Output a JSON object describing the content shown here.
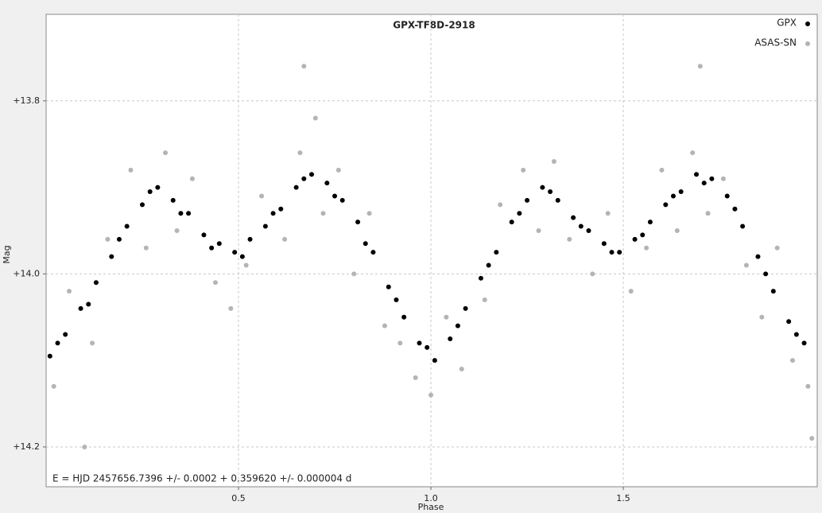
{
  "chart_data": {
    "type": "scatter",
    "title": "GPX-TF8D-2918",
    "x_label": "Phase",
    "y_label": "Mag",
    "annotation": "E = HJD 2457656.7396 +/- 0.0002 + 0.359620 +/- 0.000004 d",
    "xlim": [
      0,
      2.004
    ],
    "ylim": [
      14.246,
      13.7
    ],
    "xticks": [
      0.5,
      {
        "value": 1,
        "label": "1.0"
      },
      1.5
    ],
    "yticks": [
      {
        "value": 13.8,
        "label": "+13.8"
      },
      {
        "value": 14.0,
        "label": "+14.0"
      },
      {
        "value": 14.2,
        "label": "+14.2"
      }
    ],
    "grid": true,
    "legend": "top-right",
    "series": [
      {
        "name": "ASAS-SN",
        "color": "#b4b4b4",
        "x": [
          0.02,
          0.06,
          0.12,
          0.16,
          0.22,
          0.26,
          0.31,
          0.34,
          0.38,
          0.44,
          0.48,
          0.52,
          0.56,
          0.62,
          0.66,
          0.7,
          0.72,
          0.76,
          0.8,
          0.84,
          0.88,
          0.92,
          0.96,
          1.0,
          1.04,
          1.08,
          1.14,
          1.18,
          1.24,
          1.28,
          1.32,
          1.36,
          1.42,
          1.46,
          1.52,
          1.56,
          1.6,
          1.64,
          1.68,
          1.72,
          1.76,
          1.82,
          1.86,
          1.9,
          1.94,
          1.98,
          0.67,
          1.7,
          0.1,
          1.99
        ],
        "values": [
          14.13,
          14.02,
          14.08,
          13.96,
          13.88,
          13.97,
          13.86,
          13.95,
          13.89,
          14.01,
          14.04,
          13.99,
          13.91,
          13.96,
          13.86,
          13.82,
          13.93,
          13.88,
          14.0,
          13.93,
          14.06,
          14.08,
          14.12,
          14.14,
          14.05,
          14.11,
          14.03,
          13.92,
          13.88,
          13.95,
          13.87,
          13.96,
          14.0,
          13.93,
          14.02,
          13.97,
          13.88,
          13.95,
          13.86,
          13.93,
          13.89,
          13.99,
          14.05,
          13.97,
          14.1,
          14.13,
          13.76,
          13.76,
          14.2,
          14.19
        ]
      },
      {
        "name": "GPX",
        "color": "#000000",
        "x": [
          0.01,
          0.05,
          0.09,
          0.13,
          0.17,
          0.21,
          0.25,
          0.29,
          0.33,
          0.37,
          0.41,
          0.45,
          0.49,
          0.53,
          0.57,
          0.61,
          0.65,
          0.69,
          0.73,
          0.77,
          0.81,
          0.85,
          0.89,
          0.93,
          0.97,
          1.01,
          1.05,
          1.09,
          1.13,
          1.17,
          1.21,
          1.25,
          1.29,
          1.33,
          1.37,
          1.41,
          1.45,
          1.49,
          1.53,
          1.57,
          1.61,
          1.65,
          1.69,
          1.73,
          1.77,
          1.81,
          1.85,
          1.89,
          1.93,
          1.97,
          0.03,
          0.11,
          0.19,
          0.27,
          0.35,
          0.43,
          0.51,
          0.59,
          0.67,
          0.75,
          0.83,
          0.91,
          0.99,
          1.07,
          1.15,
          1.23,
          1.31,
          1.39,
          1.47,
          1.55,
          1.63,
          1.71,
          1.79,
          1.87,
          1.95
        ],
        "values": [
          14.095,
          14.07,
          14.04,
          14.01,
          13.98,
          13.945,
          13.92,
          13.9,
          13.915,
          13.93,
          13.955,
          13.965,
          13.975,
          13.96,
          13.945,
          13.925,
          13.9,
          13.885,
          13.895,
          13.915,
          13.94,
          13.975,
          14.015,
          14.05,
          14.08,
          14.1,
          14.075,
          14.04,
          14.005,
          13.975,
          13.94,
          13.915,
          13.9,
          13.915,
          13.935,
          13.95,
          13.965,
          13.975,
          13.96,
          13.94,
          13.92,
          13.905,
          13.885,
          13.89,
          13.91,
          13.945,
          13.98,
          14.02,
          14.055,
          14.08,
          14.08,
          14.035,
          13.96,
          13.905,
          13.93,
          13.97,
          13.98,
          13.93,
          13.89,
          13.91,
          13.965,
          14.03,
          14.085,
          14.06,
          13.99,
          13.93,
          13.905,
          13.945,
          13.975,
          13.955,
          13.91,
          13.895,
          13.925,
          14.0,
          14.07
        ]
      }
    ]
  }
}
